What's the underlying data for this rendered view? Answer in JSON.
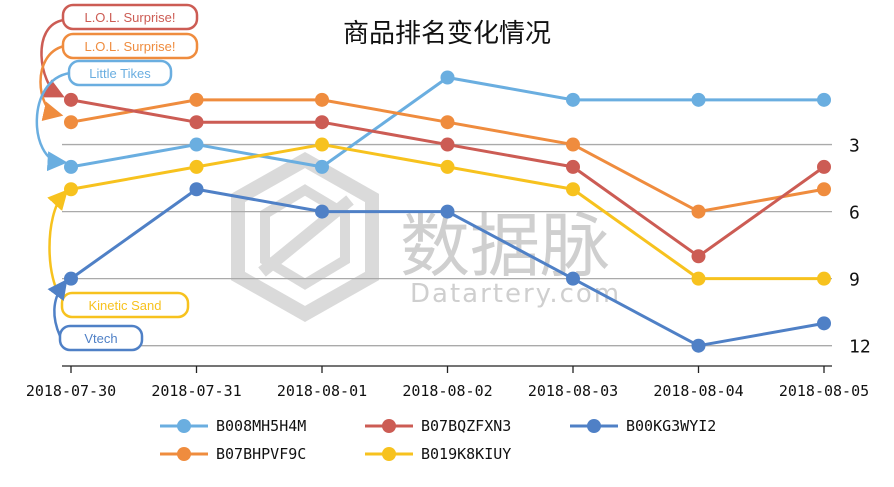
{
  "chart_data": {
    "type": "line",
    "title": "商品排名变化情况",
    "categories": [
      "2018-07-30",
      "2018-07-31",
      "2018-08-01",
      "2018-08-02",
      "2018-08-03",
      "2018-08-04",
      "2018-08-05"
    ],
    "y_ticks": [
      3,
      6,
      9,
      12
    ],
    "ylim": [
      0,
      12
    ],
    "y_inverted": true,
    "grid": true,
    "legend_position": "bottom",
    "series": [
      {
        "name": "B008MH5H4M",
        "color": "#6aaee0",
        "values": [
          4,
          3,
          4,
          0,
          1,
          1,
          1
        ]
      },
      {
        "name": "B07BHPVF9C",
        "color": "#ef8c3e",
        "values": [
          2,
          1,
          1,
          2,
          3,
          6,
          5
        ]
      },
      {
        "name": "B07BQZFXN3",
        "color": "#cc5c54",
        "values": [
          1,
          2,
          2,
          3,
          4,
          8,
          4
        ]
      },
      {
        "name": "B019K8KIUY",
        "color": "#f7c21e",
        "values": [
          5,
          4,
          3,
          4,
          5,
          9,
          9
        ]
      },
      {
        "name": "B00KG3WYI2",
        "color": "#4f80c6",
        "values": [
          9,
          5,
          6,
          6,
          9,
          12,
          11
        ]
      }
    ],
    "annotations": [
      {
        "text": "L.O.L. Surprise!",
        "series": "B07BQZFXN3",
        "color": "#cc5c54"
      },
      {
        "text": "L.O.L. Surprise!",
        "series": "B07BHPVF9C",
        "color": "#ef8c3e"
      },
      {
        "text": "Little Tikes",
        "series": "B008MH5H4M",
        "color": "#6aaee0"
      },
      {
        "text": "Kinetic Sand",
        "series": "B019K8KIUY",
        "color": "#f7c21e"
      },
      {
        "text": "Vtech",
        "series": "B00KG3WYI2",
        "color": "#4f80c6"
      }
    ]
  },
  "watermark": {
    "cn": "数据脉",
    "en": "Datartery.com"
  }
}
